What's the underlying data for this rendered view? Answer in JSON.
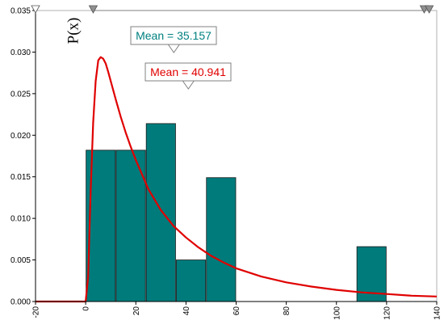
{
  "chart_data": {
    "type": "bar",
    "ylabel": "P(x)",
    "xlim": [
      -20,
      140
    ],
    "ylim": [
      0,
      0.035
    ],
    "x_ticks": [
      "-20",
      "0",
      "20",
      "40",
      "60",
      "80",
      "100",
      "120",
      "140"
    ],
    "y_ticks": [
      "0.000",
      "0.005",
      "0.010",
      "0.015",
      "0.020",
      "0.025",
      "0.030",
      "0.035"
    ],
    "grid": false,
    "histogram": {
      "color": "#007b7b",
      "bins": [
        {
          "x0": 0,
          "x1": 12,
          "value": 0.0182
        },
        {
          "x0": 12,
          "x1": 24,
          "value": 0.0182
        },
        {
          "x0": 24,
          "x1": 36,
          "value": 0.0214
        },
        {
          "x0": 36,
          "x1": 48,
          "value": 0.005
        },
        {
          "x0": 48,
          "x1": 60,
          "value": 0.0149
        },
        {
          "x0": 108,
          "x1": 120,
          "value": 0.0066
        }
      ]
    },
    "fitted_curve": {
      "color": "#e00000",
      "x": [
        -20,
        0,
        1,
        2,
        3,
        4,
        5,
        6,
        7,
        8,
        9,
        10,
        12,
        14,
        16,
        18,
        20,
        25,
        30,
        35,
        40,
        45,
        50,
        55,
        60,
        70,
        80,
        90,
        100,
        110,
        120,
        130,
        140
      ],
      "y": [
        0,
        0,
        0.003,
        0.0133,
        0.0215,
        0.0265,
        0.029,
        0.0294,
        0.0292,
        0.0286,
        0.0276,
        0.0265,
        0.0243,
        0.0222,
        0.0203,
        0.0186,
        0.017,
        0.0135,
        0.011,
        0.0091,
        0.0077,
        0.0065,
        0.0055,
        0.0047,
        0.004,
        0.003,
        0.0023,
        0.0018,
        0.0014,
        0.0011,
        0.0009,
        0.0007,
        0.0006
      ]
    },
    "annotations": [
      {
        "label": "Mean = 35.157",
        "x": 35.157,
        "color": "#008080"
      },
      {
        "label": "Mean = 40.941",
        "x": 40.941,
        "color": "#e00000"
      }
    ],
    "markers_top": [
      -20,
      3,
      135,
      137
    ]
  }
}
